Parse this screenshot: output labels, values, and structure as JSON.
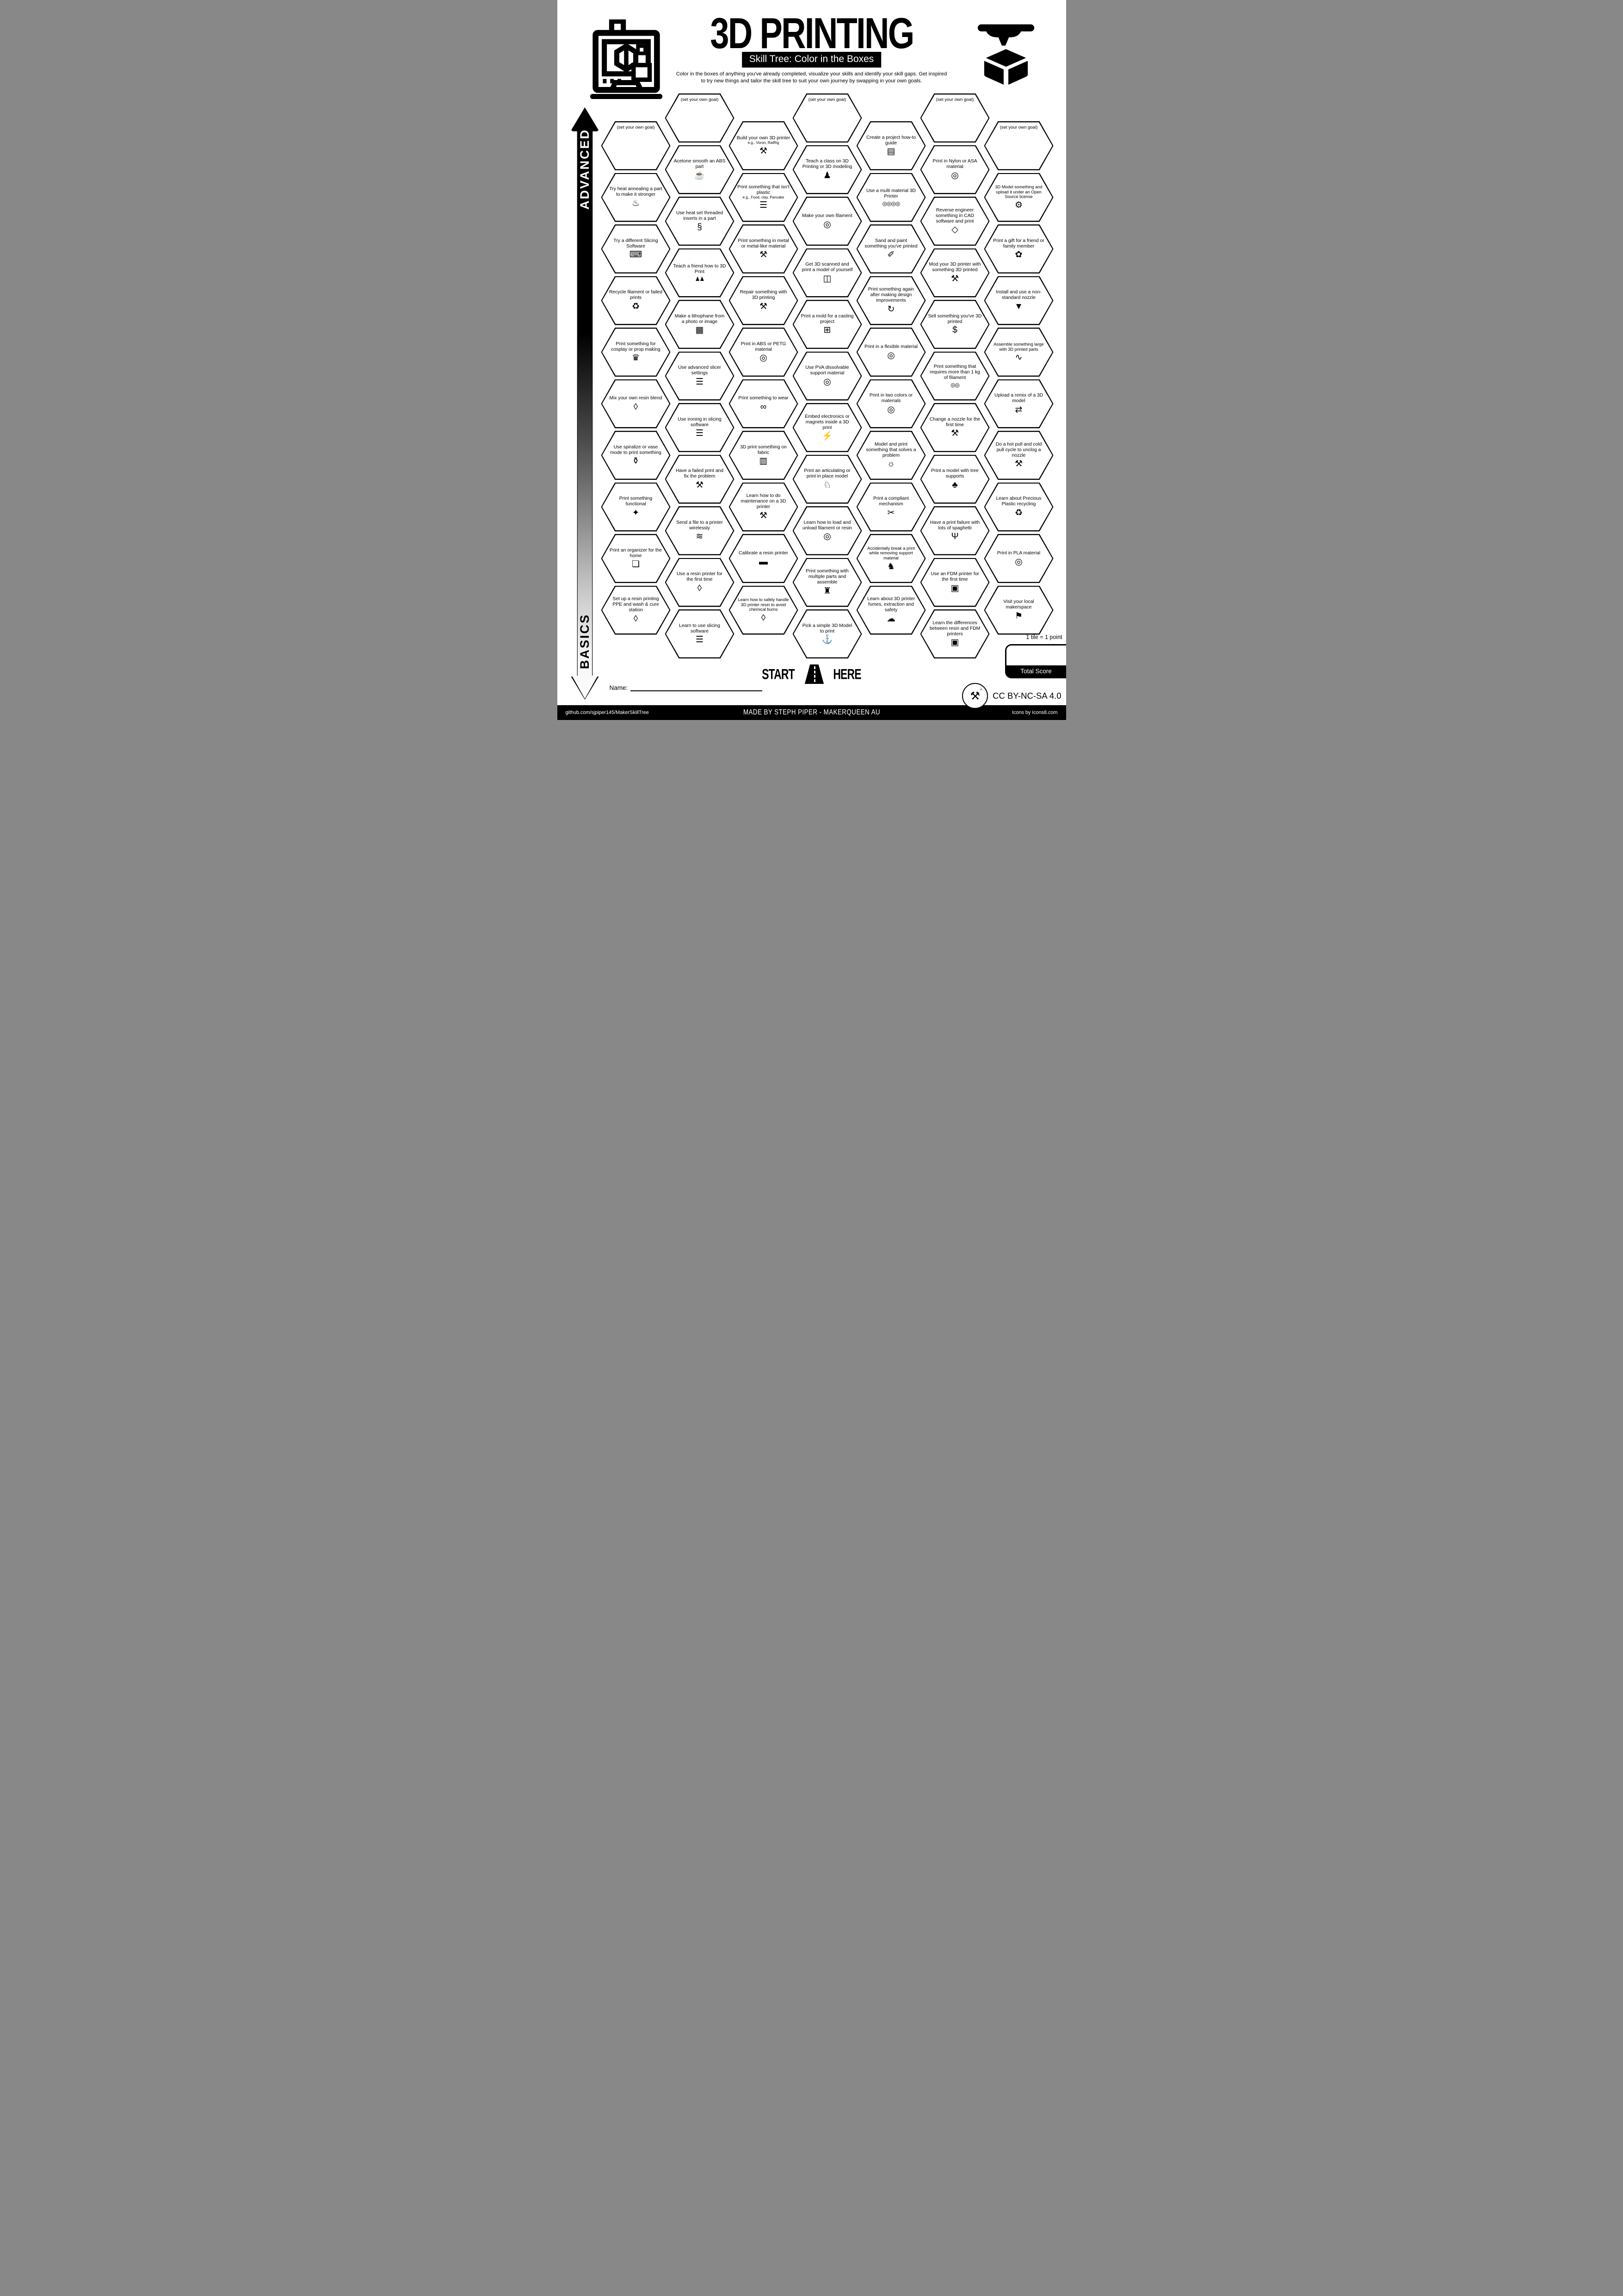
{
  "header": {
    "title": "3D PRINTING",
    "subtitle": "Skill Tree: Color in the Boxes",
    "description_line1": "Color in the boxes of anything you've already completed, visualize your skills and identify your skill gaps.  Get inspired",
    "description_line2": "to try new things and tailor the skill tree to suit your own journey by swapping in your own goals."
  },
  "axis": {
    "advanced": "ADVANCED",
    "basics": "BASICS"
  },
  "goal_label": "(set your own goal)",
  "hexes": [
    {
      "col": 1,
      "row": 0,
      "goal": true
    },
    {
      "col": 1,
      "row": 1,
      "label": "Try heat annealing a part to make it stronger",
      "icon": "♨",
      "icon_name": "thermometer-up-icon"
    },
    {
      "col": 1,
      "row": 2,
      "label": "Try a different Slicing Software",
      "icon": "⌨",
      "icon_name": "laptop-gear-icon"
    },
    {
      "col": 1,
      "row": 3,
      "label": "Recycle filament or failed prints",
      "icon": "♻",
      "icon_name": "recycle-icon"
    },
    {
      "col": 1,
      "row": 4,
      "label": "Print something for cosplay or prop making",
      "icon": "♛",
      "icon_name": "mannequin-icon"
    },
    {
      "col": 1,
      "row": 5,
      "label": "Mix your own resin blend",
      "icon": "◊",
      "icon_name": "resin-drop-icon"
    },
    {
      "col": 1,
      "row": 6,
      "label": "Use spiralize or vase mode to print something",
      "icon": "⚱",
      "icon_name": "vase-icon"
    },
    {
      "col": 1,
      "row": 7,
      "label": "Print something functional",
      "icon": "✦",
      "icon_name": "desk-lamp-icon"
    },
    {
      "col": 1,
      "row": 8,
      "label": "Print an organizer for the home",
      "icon": "❏",
      "icon_name": "organizer-icon"
    },
    {
      "col": 1,
      "row": 9,
      "label": "Set up a resin printing PPE and wash & cure station",
      "icon": "◊",
      "icon_name": "resin-drop-icon"
    },
    {
      "col": 2,
      "row": 0,
      "goal": true
    },
    {
      "col": 2,
      "row": 1,
      "label": "Acetone smooth an ABS part",
      "icon": "☕",
      "icon_name": "acetone-pot-icon"
    },
    {
      "col": 2,
      "row": 2,
      "label": "Use heat set threaded inserts in a part",
      "icon": "§",
      "icon_name": "threaded-insert-icon"
    },
    {
      "col": 2,
      "row": 3,
      "label": "Teach a friend how to 3D Print",
      "icon": "♟♟",
      "icon_name": "two-people-icon"
    },
    {
      "col": 2,
      "row": 4,
      "label": "Make a lithophane from a photo or image",
      "icon": "▦",
      "icon_name": "photo-icon"
    },
    {
      "col": 2,
      "row": 5,
      "label": "Use advanced slicer settings",
      "icon": "☰",
      "icon_name": "slicer-layers-icon"
    },
    {
      "col": 2,
      "row": 6,
      "label": "Use ironing in slicing software",
      "icon": "☰",
      "icon_name": "slicer-layers-icon"
    },
    {
      "col": 2,
      "row": 7,
      "label": "Have a failed print and fix the problem",
      "icon": "⚒",
      "icon_name": "tools-icon"
    },
    {
      "col": 2,
      "row": 8,
      "label": "Send a file to a printer wirelessly",
      "icon": "≋",
      "icon_name": "wifi-icon"
    },
    {
      "col": 2,
      "row": 9,
      "label": "Use a resin printer for the first time",
      "icon": "◊",
      "icon_name": "resin-drop-icon"
    },
    {
      "col": 2,
      "row": 10,
      "label": "Learn to use slicing software",
      "icon": "☰",
      "icon_name": "slicer-layers-icon"
    },
    {
      "col": 3,
      "row": 0,
      "label": "Build your own 3D printer",
      "sub": "e.g., Voron, RatRig",
      "icon": "⚒",
      "icon_name": "tools-icon"
    },
    {
      "col": 3,
      "row": 1,
      "label": "Print something that isn't plastic",
      "sub": "e.g., Food, clay, Pancake",
      "icon": "☰",
      "icon_name": "pancake-stack-icon"
    },
    {
      "col": 3,
      "row": 2,
      "label": "Print something in metal or metal-like material",
      "icon": "⚒",
      "icon_name": "anvil-icon"
    },
    {
      "col": 3,
      "row": 3,
      "label": "Repair something with 3D printing",
      "icon": "⚒",
      "icon_name": "tools-icon"
    },
    {
      "col": 3,
      "row": 4,
      "label": "Print in ABS or PETG material",
      "icon": "◎",
      "icon_name": "filament-spool-icon"
    },
    {
      "col": 3,
      "row": 5,
      "label": "Print something to wear",
      "icon": "∞",
      "icon_name": "sunglasses-icon"
    },
    {
      "col": 3,
      "row": 6,
      "label": "3D print something on fabric",
      "icon": "▥",
      "icon_name": "fabric-icon"
    },
    {
      "col": 3,
      "row": 7,
      "label": "Learn how to do maintenance on a 3D printer",
      "icon": "⚒",
      "icon_name": "tools-icon"
    },
    {
      "col": 3,
      "row": 8,
      "label": "Calibrate a resin printer",
      "icon": "▬",
      "icon_name": "ruler-icon"
    },
    {
      "col": 3,
      "row": 9,
      "small": true,
      "label": "Learn how to safely handle 3D printer resin to avoid chemical burns",
      "icon": "◊",
      "icon_name": "resin-drop-icon"
    },
    {
      "col": 4,
      "row": 0,
      "goal": true
    },
    {
      "col": 4,
      "row": 1,
      "label": "Teach a class on 3D Printing or 3D modeling",
      "icon": "♟",
      "icon_name": "presenter-icon"
    },
    {
      "col": 4,
      "row": 2,
      "label": "Make your own filament",
      "icon": "◎",
      "icon_name": "filament-spool-icon"
    },
    {
      "col": 4,
      "row": 3,
      "label": "Get 3D scanned and print a model of yourself",
      "icon": "◫",
      "icon_name": "body-scan-icon"
    },
    {
      "col": 4,
      "row": 4,
      "label": "Print a mold for a casting project",
      "icon": "⊞",
      "icon_name": "mold-tray-icon"
    },
    {
      "col": 4,
      "row": 5,
      "label": "Use PVA dissolvable support material",
      "icon": "◎",
      "icon_name": "filament-spool-icon"
    },
    {
      "col": 4,
      "row": 6,
      "label": "Embed electronics or magnets inside a 3D print",
      "icon": "⚡",
      "icon_name": "led-icon"
    },
    {
      "col": 4,
      "row": 7,
      "label": "Print an articulating or print in place model",
      "icon": "♘",
      "icon_name": "dragon-icon"
    },
    {
      "col": 4,
      "row": 8,
      "label": "Learn how to load and unload filament or resin",
      "icon": "◎",
      "icon_name": "filament-spool-icon"
    },
    {
      "col": 4,
      "row": 9,
      "label": "Print something with multiple parts and assemble",
      "icon": "♜",
      "icon_name": "train-icon"
    },
    {
      "col": 4,
      "row": 10,
      "label": "Pick a simple 3D Model to print",
      "icon": "⚓",
      "icon_name": "boat-icon"
    },
    {
      "col": 5,
      "row": 0,
      "label": "Create a project how-to guide",
      "icon": "▤",
      "icon_name": "document-icon"
    },
    {
      "col": 5,
      "row": 1,
      "label": "Use a multi material 3D Printer",
      "icon": "◎◎◎◎",
      "icon_name": "multi-spool-icon"
    },
    {
      "col": 5,
      "row": 2,
      "label": "Sand and paint something you've printed",
      "icon": "✐",
      "icon_name": "paint-bucket-icon"
    },
    {
      "col": 5,
      "row": 3,
      "label": "Print something again after making design improvements",
      "icon": "↻",
      "icon_name": "reprint-gauge-icon"
    },
    {
      "col": 5,
      "row": 4,
      "label": "Print in a flexible material",
      "icon": "◎",
      "icon_name": "filament-spool-icon"
    },
    {
      "col": 5,
      "row": 5,
      "label": "Print in two colors or materials",
      "icon": "◎",
      "icon_name": "filament-spool-icon"
    },
    {
      "col": 5,
      "row": 6,
      "label": "Model and print something that solves a problem",
      "icon": "☼",
      "icon_name": "lightbulb-icon"
    },
    {
      "col": 5,
      "row": 7,
      "label": "Print a compliant mechanism",
      "icon": "✂",
      "icon_name": "compliant-mechanism-icon"
    },
    {
      "col": 5,
      "row": 8,
      "small": true,
      "label": "Accidentally break a print while removing support material",
      "icon": "♞",
      "icon_name": "elephant-icon"
    },
    {
      "col": 5,
      "row": 9,
      "label": "Learn about 3D printer fumes, extraction and safety",
      "icon": "☁",
      "icon_name": "fumes-icon"
    },
    {
      "col": 6,
      "row": 0,
      "goal": true
    },
    {
      "col": 6,
      "row": 1,
      "label": "Print in Nylon or ASA material",
      "icon": "◎",
      "icon_name": "filament-spool-icon"
    },
    {
      "col": 6,
      "row": 2,
      "label": "Reverse engineer something in CAD software and print",
      "icon": "◇",
      "icon_name": "cad-cube-icon"
    },
    {
      "col": 6,
      "row": 3,
      "label": "Mod your 3D printer with something 3D printed",
      "icon": "⚒",
      "icon_name": "tools-icon"
    },
    {
      "col": 6,
      "row": 4,
      "label": "Sell something you've 3D printed",
      "icon": "$",
      "icon_name": "money-bag-icon"
    },
    {
      "col": 6,
      "row": 5,
      "label": "Print something that requires more than 1 kg of filament",
      "icon": "◎◎",
      "icon_name": "two-spools-icon"
    },
    {
      "col": 6,
      "row": 6,
      "label": "Change a nozzle for the first time",
      "icon": "⚒",
      "icon_name": "tools-icon"
    },
    {
      "col": 6,
      "row": 7,
      "label": "Print a model with tree supports",
      "icon": "♣",
      "icon_name": "tree-icon"
    },
    {
      "col": 6,
      "row": 8,
      "label": "Have a print failure  with lots of spaghetti",
      "icon": "Ψ",
      "icon_name": "spaghetti-icon"
    },
    {
      "col": 6,
      "row": 9,
      "label": "Use an FDM printer for the first time",
      "icon": "▣",
      "icon_name": "fdm-printer-icon"
    },
    {
      "col": 6,
      "row": 10,
      "label": "Learn the differences between resin and FDM printers",
      "icon": "▣",
      "icon_name": "fdm-printer-icon"
    },
    {
      "col": 7,
      "row": 0,
      "goal": true
    },
    {
      "col": 7,
      "row": 1,
      "small": true,
      "label": "3D Model something and upload it under an Open Source license",
      "icon": "⚙",
      "icon_name": "open-source-icon"
    },
    {
      "col": 7,
      "row": 2,
      "label": "Print a gift for a friend or family member",
      "icon": "✿",
      "icon_name": "gift-bow-icon"
    },
    {
      "col": 7,
      "row": 3,
      "label": "Install and use a non-standard nozzle",
      "icon": "▼",
      "icon_name": "nozzle-icon"
    },
    {
      "col": 7,
      "row": 4,
      "small": true,
      "label": "Assemble something large with 3D printed parts",
      "icon": "∿",
      "icon_name": "whale-icon"
    },
    {
      "col": 7,
      "row": 5,
      "label": "Upload a remix of a 3D model",
      "icon": "⇄",
      "icon_name": "remix-arrows-icon"
    },
    {
      "col": 7,
      "row": 6,
      "label": "Do a hot pull and cold pull cycle to unclog a nozzle",
      "icon": "⚒",
      "icon_name": "tools-icon"
    },
    {
      "col": 7,
      "row": 7,
      "label": "Learn about Precious Plastic recycling",
      "icon": "♻",
      "icon_name": "recycle-icon"
    },
    {
      "col": 7,
      "row": 8,
      "label": "Print in PLA material",
      "icon": "◎",
      "icon_name": "filament-spool-icon"
    },
    {
      "col": 7,
      "row": 9,
      "label": "Visit your local makerspace",
      "icon": "⚑",
      "icon_name": "location-pin-icon"
    }
  ],
  "start": {
    "left": "START",
    "right": "HERE"
  },
  "name_label": "Name:",
  "score": {
    "note": "1 tile = 1 point",
    "label": "Total Score"
  },
  "license": "CC BY-NC-SA 4.0",
  "footer": {
    "left": "github.com/sjpiper145/MakerSkillTree",
    "center": "MADE BY STEPH PIPER  -  MAKERQUEEN AU",
    "right": "Icons by Icons8.com"
  }
}
